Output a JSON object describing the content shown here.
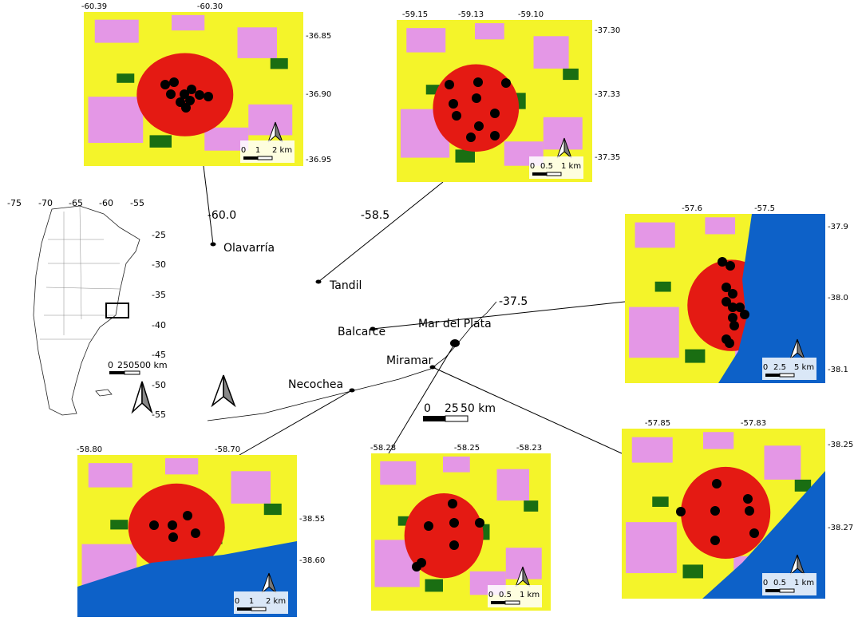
{
  "argentina_map": {
    "x_labels": [
      "-75",
      "-70",
      "-65",
      "-60",
      "-55"
    ],
    "y_labels": [
      "-25",
      "-30",
      "-35",
      "-40",
      "-45",
      "-50",
      "-55"
    ],
    "scale_labels": [
      "0",
      "250500 km"
    ]
  },
  "main_map": {
    "x_labels": [
      "-60.0",
      "-58.5"
    ],
    "y_labels": [
      "-37.5"
    ],
    "cities": [
      "Olavarría",
      "Tandil",
      "Balcarce",
      "Mar del Plata",
      "Miramar",
      "Necochea"
    ],
    "scale_labels": [
      "0",
      "25",
      "50 km"
    ]
  },
  "panels": [
    {
      "x_labels": [
        "-60.39",
        "-60.30"
      ],
      "y_labels": [
        "-36.85",
        "-36.90",
        "-36.95"
      ],
      "scale_labels": [
        "0",
        "1",
        "2 km"
      ]
    },
    {
      "x_labels": [
        "-59.15",
        "-59.13",
        "-59.10"
      ],
      "y_labels": [
        "-37.30",
        "-37.33",
        "-37.35"
      ],
      "scale_labels": [
        "0",
        "0.5",
        "1 km"
      ]
    },
    {
      "x_labels": [
        "-57.6",
        "-57.5"
      ],
      "y_labels": [
        "-37.9",
        "-38.0",
        "-38.1"
      ],
      "scale_labels": [
        "0",
        "2.5",
        "5 km"
      ]
    },
    {
      "x_labels": [
        "-58.80",
        "-58.70"
      ],
      "y_labels": [
        "-38.55",
        "-38.60"
      ],
      "scale_labels": [
        "0",
        "1",
        "2 km"
      ]
    },
    {
      "x_labels": [
        "-58.28",
        "-58.25",
        "-58.23"
      ],
      "y_labels": [],
      "scale_labels": [
        "0",
        "0.5",
        "1 km"
      ]
    },
    {
      "x_labels": [
        "-57.85",
        "-57.83"
      ],
      "y_labels": [
        "-38.25",
        "-38.27"
      ],
      "scale_labels": [
        "0",
        "0.5",
        "1 km"
      ]
    }
  ]
}
